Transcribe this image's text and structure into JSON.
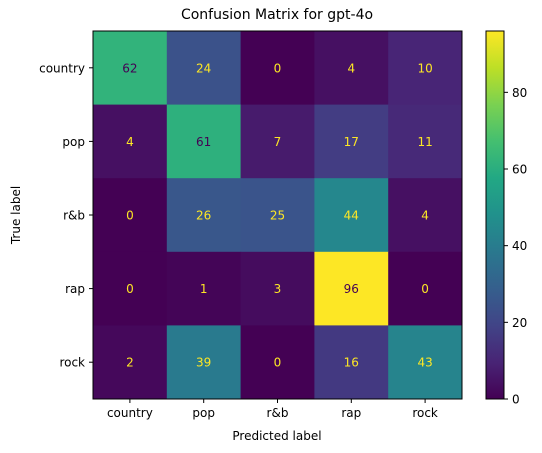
{
  "chart_data": {
    "type": "heatmap",
    "title": "Confusion Matrix for gpt-4o",
    "xlabel": "Predicted label",
    "ylabel": "True label",
    "x_categories": [
      "country",
      "pop",
      "r&b",
      "rap",
      "rock"
    ],
    "y_categories": [
      "country",
      "pop",
      "r&b",
      "rap",
      "rock"
    ],
    "values": [
      [
        62,
        24,
        0,
        4,
        10
      ],
      [
        4,
        61,
        7,
        17,
        11
      ],
      [
        0,
        26,
        25,
        44,
        4
      ],
      [
        0,
        1,
        3,
        96,
        0
      ],
      [
        2,
        39,
        0,
        16,
        43
      ]
    ],
    "colormap": "viridis",
    "vmin": 0,
    "vmax": 96,
    "colorbar_ticks": [
      0,
      20,
      40,
      60,
      80
    ],
    "colorbar_tick_labels": [
      "0",
      "20",
      "40",
      "60",
      "80"
    ],
    "cell_label_colors": {
      "on_dark": "#fde725",
      "on_light": "#440154"
    }
  }
}
